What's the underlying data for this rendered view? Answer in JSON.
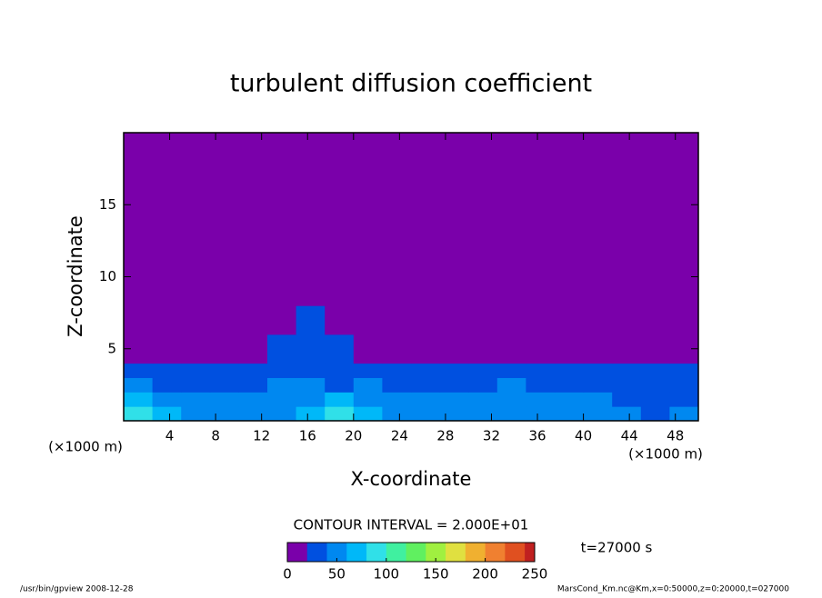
{
  "chart_data": {
    "type": "heatmap",
    "title": "turbulent diffusion coefficient",
    "xlabel": "X-coordinate",
    "ylabel": "Z-coordinate",
    "xunit": "(×1000 m)",
    "yunit": "(×1000 m)",
    "xlim": [
      0,
      50
    ],
    "ylim": [
      0,
      20
    ],
    "xticks": [
      4,
      8,
      12,
      16,
      20,
      24,
      28,
      32,
      36,
      40,
      44,
      48
    ],
    "yticks": [
      5,
      10,
      15
    ],
    "contour_label": "CONTOUR INTERVAL = 2.000E+01",
    "time_label": "t=27000 s",
    "footer_left": "/usr/bin/gpview   2008-12-28",
    "footer_right": "MarsCond_Km.nc@Km,x=0:50000,z=0:20000,t=027000",
    "clim": [
      0,
      250
    ],
    "cticks": [
      0,
      50,
      100,
      150,
      200,
      250
    ],
    "level_step": 20,
    "colors": [
      "#7a00aa",
      "#0050e0",
      "#0088f0",
      "#00b8f8",
      "#30e0e8",
      "#40f0a0",
      "#60f060",
      "#a0f040",
      "#e0e040",
      "#f0b030",
      "#f08030",
      "#e05020",
      "#c02020"
    ],
    "field": {
      "x_edges": [
        0,
        2.5,
        5,
        7.5,
        10,
        12.5,
        15,
        17.5,
        20,
        22.5,
        25,
        27.5,
        30,
        32.5,
        35,
        37.5,
        40,
        42.5,
        45,
        47.5,
        50
      ],
      "z_edges": [
        0,
        1,
        2,
        3,
        4,
        6,
        8,
        20
      ],
      "values": [
        [
          90,
          60,
          45,
          50,
          45,
          55,
          70,
          80,
          75,
          50,
          45,
          40,
          45,
          55,
          45,
          40,
          45,
          40,
          35,
          40
        ],
        [
          60,
          50,
          40,
          40,
          45,
          50,
          55,
          60,
          50,
          45,
          40,
          40,
          50,
          55,
          45,
          40,
          40,
          35,
          35,
          35
        ],
        [
          40,
          35,
          35,
          30,
          35,
          40,
          40,
          35,
          40,
          35,
          35,
          30,
          35,
          40,
          35,
          30,
          30,
          30,
          30,
          30
        ],
        [
          25,
          25,
          25,
          25,
          25,
          30,
          30,
          30,
          25,
          25,
          25,
          25,
          25,
          30,
          25,
          25,
          25,
          25,
          25,
          25
        ],
        [
          5,
          5,
          5,
          5,
          10,
          20,
          25,
          25,
          5,
          5,
          5,
          5,
          5,
          10,
          5,
          5,
          5,
          10,
          10,
          5
        ],
        [
          0,
          0,
          0,
          0,
          0,
          10,
          25,
          5,
          0,
          0,
          0,
          0,
          0,
          0,
          0,
          0,
          0,
          0,
          0,
          0
        ],
        [
          0,
          0,
          0,
          0,
          0,
          0,
          0,
          0,
          0,
          0,
          0,
          0,
          0,
          0,
          0,
          0,
          0,
          0,
          0,
          0
        ]
      ]
    }
  }
}
